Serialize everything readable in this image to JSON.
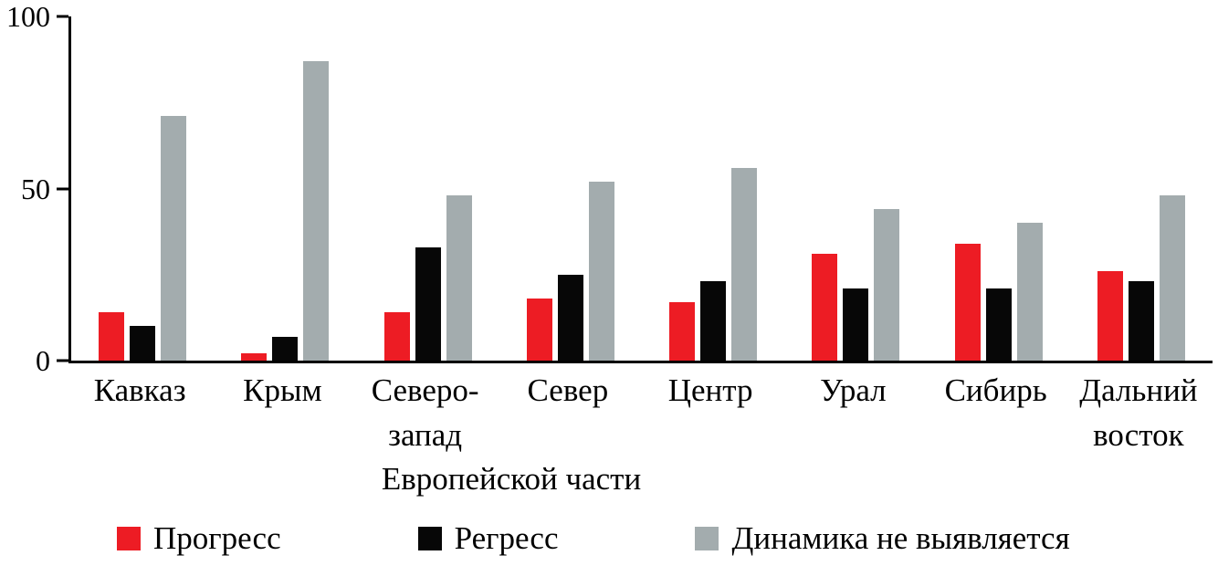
{
  "chart_data": {
    "type": "bar",
    "title": "",
    "xlabel": "",
    "ylabel": "",
    "categories": [
      "Кавказ",
      "Крым",
      "Северо-\nзапад",
      "Север",
      "Центр",
      "Урал",
      "Сибирь",
      "Дальний\nвосток"
    ],
    "series": [
      {
        "name": "Прогресс",
        "color": "#ed1c24",
        "values": [
          14,
          2,
          14,
          18,
          17,
          31,
          34,
          26
        ]
      },
      {
        "name": "Регресс",
        "color": "#070707",
        "values": [
          10,
          7,
          33,
          25,
          23,
          21,
          21,
          23
        ]
      },
      {
        "name": "Динамика не выявляется",
        "color": "#a3acae",
        "values": [
          71,
          87,
          48,
          52,
          56,
          44,
          40,
          48
        ]
      }
    ],
    "ylim": [
      0,
      100
    ],
    "yticks": [
      0,
      50,
      100
    ],
    "axis_note": "Европейской части",
    "legend_position": "bottom",
    "grid": false,
    "series_names_semantic": [
      "progress",
      "regress",
      "no-dynamics"
    ]
  }
}
